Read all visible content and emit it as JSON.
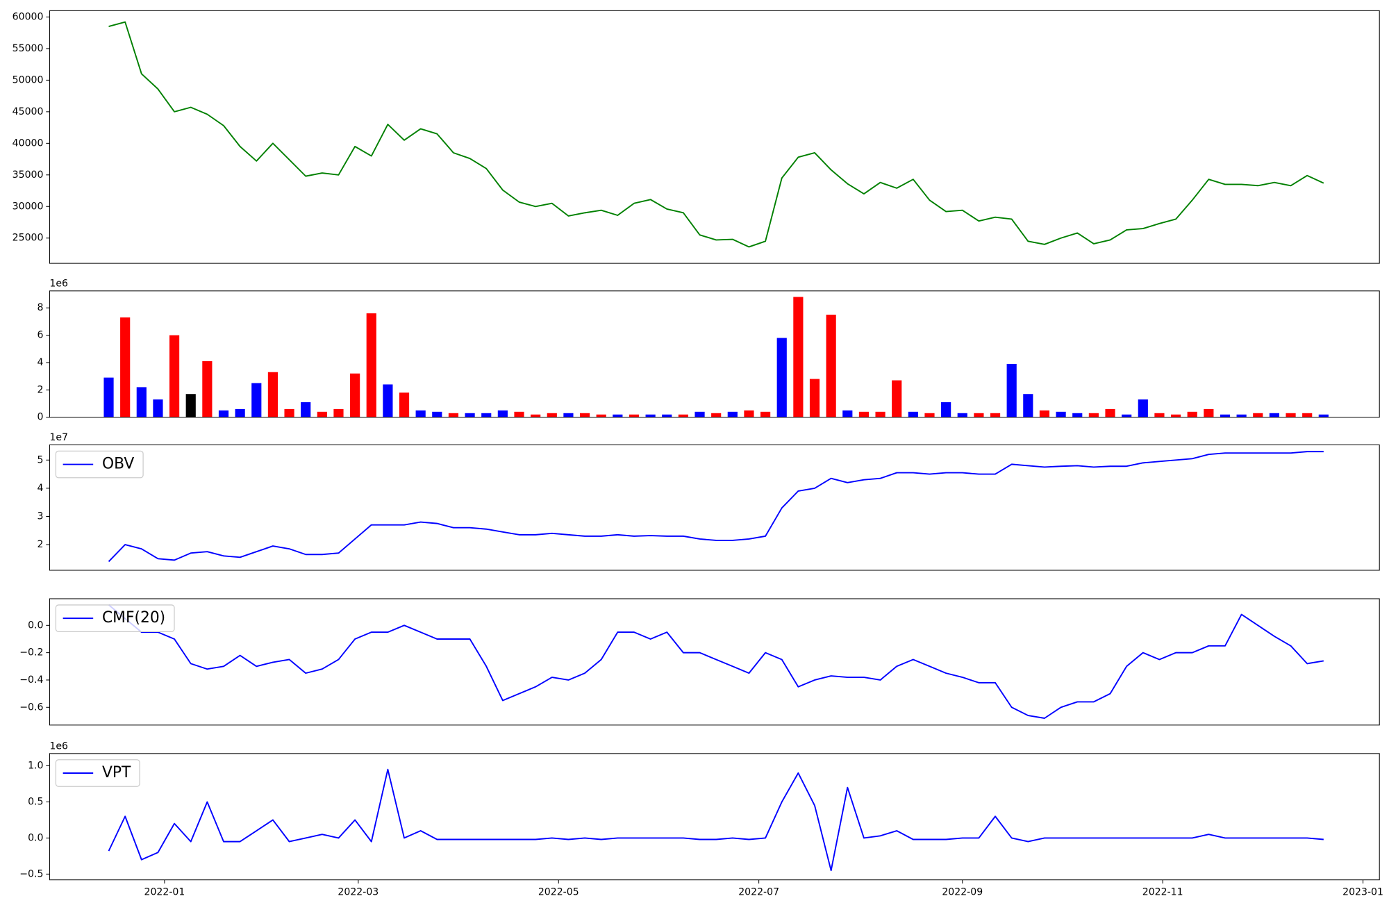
{
  "chart_data": [
    {
      "type": "line",
      "x": [
        "2021-12-15",
        "2021-12-20",
        "2021-12-25",
        "2021-12-30",
        "2022-01-04",
        "2022-01-09",
        "2022-01-14",
        "2022-01-19",
        "2022-01-24",
        "2022-01-29",
        "2022-02-03",
        "2022-02-08",
        "2022-02-13",
        "2022-02-18",
        "2022-02-23",
        "2022-02-28",
        "2022-03-05",
        "2022-03-10",
        "2022-03-15",
        "2022-03-20",
        "2022-03-25",
        "2022-03-30",
        "2022-04-04",
        "2022-04-09",
        "2022-04-14",
        "2022-04-19",
        "2022-04-24",
        "2022-04-29",
        "2022-05-04",
        "2022-05-09",
        "2022-05-14",
        "2022-05-19",
        "2022-05-24",
        "2022-05-29",
        "2022-06-03",
        "2022-06-08",
        "2022-06-13",
        "2022-06-18",
        "2022-06-23",
        "2022-06-28",
        "2022-07-03",
        "2022-07-08",
        "2022-07-13",
        "2022-07-18",
        "2022-07-23",
        "2022-07-28",
        "2022-08-02",
        "2022-08-07",
        "2022-08-12",
        "2022-08-17",
        "2022-08-22",
        "2022-08-27",
        "2022-09-01",
        "2022-09-06",
        "2022-09-11",
        "2022-09-16",
        "2022-09-21",
        "2022-09-26",
        "2022-10-01",
        "2022-10-06",
        "2022-10-11",
        "2022-10-16",
        "2022-10-21",
        "2022-10-26",
        "2022-10-31",
        "2022-11-05",
        "2022-11-10",
        "2022-11-15",
        "2022-11-20",
        "2022-11-25",
        "2022-11-30",
        "2022-12-05",
        "2022-12-10",
        "2022-12-15",
        "2022-12-20"
      ],
      "values": [
        58500,
        59200,
        51000,
        48600,
        45000,
        45700,
        44600,
        42800,
        39500,
        37200,
        40000,
        37400,
        34800,
        35300,
        35000,
        39500,
        38000,
        43000,
        40500,
        42300,
        41500,
        38500,
        37600,
        36000,
        32600,
        30700,
        30000,
        30500,
        28500,
        29000,
        29400,
        28600,
        30500,
        31100,
        29600,
        29000,
        25500,
        24700,
        24800,
        23600,
        24500,
        34500,
        37800,
        38500,
        35800,
        33600,
        32000,
        33800,
        32900,
        34300,
        31000,
        29200,
        29400,
        27700,
        28300,
        28000,
        24500,
        24000,
        25000,
        25800,
        24100,
        24700,
        26300,
        26500,
        27300,
        28000,
        31000,
        34300,
        33500,
        33500,
        33300,
        33800,
        33300,
        34900,
        33700
      ],
      "color": "green",
      "xlim": [
        "2021-11-27",
        "2023-01-06"
      ],
      "ylim": [
        21000,
        61000
      ],
      "yticks": [
        25000,
        30000,
        35000,
        40000,
        45000,
        50000,
        55000,
        60000
      ]
    },
    {
      "type": "bar",
      "x": [
        "2021-12-15",
        "2021-12-20",
        "2021-12-25",
        "2021-12-30",
        "2022-01-04",
        "2022-01-09",
        "2022-01-14",
        "2022-01-19",
        "2022-01-24",
        "2022-01-29",
        "2022-02-03",
        "2022-02-08",
        "2022-02-13",
        "2022-02-18",
        "2022-02-23",
        "2022-02-28",
        "2022-03-05",
        "2022-03-10",
        "2022-03-15",
        "2022-03-20",
        "2022-03-25",
        "2022-03-30",
        "2022-04-04",
        "2022-04-09",
        "2022-04-14",
        "2022-04-19",
        "2022-04-24",
        "2022-04-29",
        "2022-05-04",
        "2022-05-09",
        "2022-05-14",
        "2022-05-19",
        "2022-05-24",
        "2022-05-29",
        "2022-06-03",
        "2022-06-08",
        "2022-06-13",
        "2022-06-18",
        "2022-06-23",
        "2022-06-28",
        "2022-07-03",
        "2022-07-08",
        "2022-07-13",
        "2022-07-18",
        "2022-07-23",
        "2022-07-28",
        "2022-08-02",
        "2022-08-07",
        "2022-08-12",
        "2022-08-17",
        "2022-08-22",
        "2022-08-27",
        "2022-09-01",
        "2022-09-06",
        "2022-09-11",
        "2022-09-16",
        "2022-09-21",
        "2022-09-26",
        "2022-10-01",
        "2022-10-06",
        "2022-10-11",
        "2022-10-16",
        "2022-10-21",
        "2022-10-26",
        "2022-10-31",
        "2022-11-05",
        "2022-11-10",
        "2022-11-15",
        "2022-11-20",
        "2022-11-25",
        "2022-11-30",
        "2022-12-05",
        "2022-12-10",
        "2022-12-15",
        "2022-12-20"
      ],
      "values": [
        2900000,
        7300000,
        2200000,
        1300000,
        6000000,
        1700000,
        4100000,
        500000,
        600000,
        2500000,
        3300000,
        600000,
        1100000,
        400000,
        600000,
        3200000,
        7600000,
        2400000,
        1800000,
        500000,
        400000,
        300000,
        300000,
        300000,
        500000,
        400000,
        200000,
        300000,
        300000,
        300000,
        200000,
        200000,
        200000,
        200000,
        200000,
        200000,
        400000,
        300000,
        400000,
        500000,
        400000,
        5800000,
        8800000,
        2800000,
        7500000,
        500000,
        400000,
        400000,
        2700000,
        400000,
        300000,
        1100000,
        300000,
        300000,
        300000,
        3900000,
        1700000,
        500000,
        400000,
        300000,
        300000,
        600000,
        200000,
        1300000,
        300000,
        200000,
        400000,
        600000,
        200000,
        200000,
        300000,
        300000,
        300000,
        300000,
        200000
      ],
      "colors": [
        "blue",
        "red",
        "blue",
        "blue",
        "red",
        "black",
        "red",
        "blue",
        "blue",
        "blue",
        "red",
        "red",
        "blue",
        "red",
        "red",
        "red",
        "red",
        "blue",
        "red",
        "blue",
        "blue",
        "red",
        "blue",
        "blue",
        "blue",
        "red",
        "red",
        "red",
        "blue",
        "red",
        "red",
        "blue",
        "red",
        "blue",
        "blue",
        "red",
        "blue",
        "red",
        "blue",
        "red",
        "red",
        "blue",
        "red",
        "red",
        "red",
        "blue",
        "red",
        "red",
        "red",
        "blue",
        "red",
        "blue",
        "blue",
        "red",
        "red",
        "blue",
        "blue",
        "red",
        "blue",
        "blue",
        "red",
        "red",
        "blue",
        "blue",
        "red",
        "red",
        "red",
        "red",
        "blue",
        "blue",
        "red",
        "blue",
        "red",
        "red",
        "blue"
      ],
      "xlim": [
        "2021-11-27",
        "2023-01-06"
      ],
      "ylim": [
        0,
        9240000
      ],
      "yticks": [
        0,
        {
          "value": 2000000,
          "label": "2"
        },
        {
          "value": 4000000,
          "label": "4"
        },
        {
          "value": 6000000,
          "label": "6"
        },
        {
          "value": 8000000,
          "label": "8"
        }
      ],
      "offset_text": "1e6"
    },
    {
      "type": "line",
      "x": [
        "2021-12-15",
        "2021-12-20",
        "2021-12-25",
        "2021-12-30",
        "2022-01-04",
        "2022-01-09",
        "2022-01-14",
        "2022-01-19",
        "2022-01-24",
        "2022-01-29",
        "2022-02-03",
        "2022-02-08",
        "2022-02-13",
        "2022-02-18",
        "2022-02-23",
        "2022-02-28",
        "2022-03-05",
        "2022-03-10",
        "2022-03-15",
        "2022-03-20",
        "2022-03-25",
        "2022-03-30",
        "2022-04-04",
        "2022-04-09",
        "2022-04-14",
        "2022-04-19",
        "2022-04-24",
        "2022-04-29",
        "2022-05-04",
        "2022-05-09",
        "2022-05-14",
        "2022-05-19",
        "2022-05-24",
        "2022-05-29",
        "2022-06-03",
        "2022-06-08",
        "2022-06-13",
        "2022-06-18",
        "2022-06-23",
        "2022-06-28",
        "2022-07-03",
        "2022-07-08",
        "2022-07-13",
        "2022-07-18",
        "2022-07-23",
        "2022-07-28",
        "2022-08-02",
        "2022-08-07",
        "2022-08-12",
        "2022-08-17",
        "2022-08-22",
        "2022-08-27",
        "2022-09-01",
        "2022-09-06",
        "2022-09-11",
        "2022-09-16",
        "2022-09-21",
        "2022-09-26",
        "2022-10-01",
        "2022-10-06",
        "2022-10-11",
        "2022-10-16",
        "2022-10-21",
        "2022-10-26",
        "2022-10-31",
        "2022-11-05",
        "2022-11-10",
        "2022-11-15",
        "2022-11-20",
        "2022-11-25",
        "2022-11-30",
        "2022-12-05",
        "2022-12-10",
        "2022-12-15",
        "2022-12-20"
      ],
      "series": [
        {
          "name": "OBV",
          "color": "blue",
          "values": [
            14000000,
            20000000,
            18500000,
            15000000,
            14500000,
            17000000,
            17500000,
            16000000,
            15500000,
            17500000,
            19500000,
            18500000,
            16500000,
            16500000,
            17000000,
            22000000,
            27000000,
            27000000,
            27000000,
            28000000,
            27500000,
            26000000,
            26000000,
            25500000,
            24500000,
            23500000,
            23500000,
            24000000,
            23500000,
            23000000,
            23000000,
            23500000,
            23000000,
            23200000,
            23000000,
            23000000,
            22000000,
            21500000,
            21500000,
            22000000,
            23000000,
            33000000,
            39000000,
            40000000,
            43500000,
            42000000,
            43000000,
            43500000,
            45500000,
            45500000,
            45000000,
            45500000,
            45500000,
            45000000,
            45000000,
            48500000,
            48000000,
            47500000,
            47800000,
            48000000,
            47500000,
            47800000,
            47800000,
            49000000,
            49500000,
            50000000,
            50500000,
            52000000,
            52500000,
            52500000,
            52500000,
            52500000,
            52500000,
            53000000,
            53000000
          ]
        }
      ],
      "xlim": [
        "2021-11-27",
        "2023-01-06"
      ],
      "ylim": [
        10900000,
        55400000
      ],
      "yticks": [
        {
          "value": 20000000,
          "label": "2"
        },
        {
          "value": 30000000,
          "label": "3"
        },
        {
          "value": 40000000,
          "label": "4"
        },
        {
          "value": 50000000,
          "label": "5"
        }
      ],
      "offset_text": "1e7",
      "legend": "upper left"
    },
    {
      "type": "line",
      "x": [
        "2021-12-15",
        "2021-12-20",
        "2021-12-25",
        "2021-12-30",
        "2022-01-04",
        "2022-01-09",
        "2022-01-14",
        "2022-01-19",
        "2022-01-24",
        "2022-01-29",
        "2022-02-03",
        "2022-02-08",
        "2022-02-13",
        "2022-02-18",
        "2022-02-23",
        "2022-02-28",
        "2022-03-05",
        "2022-03-10",
        "2022-03-15",
        "2022-03-20",
        "2022-03-25",
        "2022-03-30",
        "2022-04-04",
        "2022-04-09",
        "2022-04-14",
        "2022-04-19",
        "2022-04-24",
        "2022-04-29",
        "2022-05-04",
        "2022-05-09",
        "2022-05-14",
        "2022-05-19",
        "2022-05-24",
        "2022-05-29",
        "2022-06-03",
        "2022-06-08",
        "2022-06-13",
        "2022-06-18",
        "2022-06-23",
        "2022-06-28",
        "2022-07-03",
        "2022-07-08",
        "2022-07-13",
        "2022-07-18",
        "2022-07-23",
        "2022-07-28",
        "2022-08-02",
        "2022-08-07",
        "2022-08-12",
        "2022-08-17",
        "2022-08-22",
        "2022-08-27",
        "2022-09-01",
        "2022-09-06",
        "2022-09-11",
        "2022-09-16",
        "2022-09-21",
        "2022-09-26",
        "2022-10-01",
        "2022-10-06",
        "2022-10-11",
        "2022-10-16",
        "2022-10-21",
        "2022-10-26",
        "2022-10-31",
        "2022-11-05",
        "2022-11-10",
        "2022-11-15",
        "2022-11-20",
        "2022-11-25",
        "2022-11-30",
        "2022-12-05",
        "2022-12-10",
        "2022-12-15",
        "2022-12-20"
      ],
      "series": [
        {
          "name": "CMF(20)",
          "color": "blue",
          "values": [
            0.15,
            0.05,
            -0.05,
            -0.05,
            -0.1,
            -0.28,
            -0.32,
            -0.3,
            -0.22,
            -0.3,
            -0.27,
            -0.25,
            -0.35,
            -0.32,
            -0.25,
            -0.1,
            -0.05,
            -0.05,
            0.0,
            -0.05,
            -0.1,
            -0.1,
            -0.1,
            -0.3,
            -0.55,
            -0.5,
            -0.45,
            -0.38,
            -0.4,
            -0.35,
            -0.25,
            -0.05,
            -0.05,
            -0.1,
            -0.05,
            -0.2,
            -0.2,
            -0.25,
            -0.3,
            -0.35,
            -0.2,
            -0.25,
            -0.45,
            -0.4,
            -0.37,
            -0.38,
            -0.38,
            -0.4,
            -0.3,
            -0.25,
            -0.3,
            -0.35,
            -0.38,
            -0.42,
            -0.42,
            -0.6,
            -0.66,
            -0.68,
            -0.6,
            -0.56,
            -0.56,
            -0.5,
            -0.3,
            -0.2,
            -0.25,
            -0.2,
            -0.2,
            -0.15,
            -0.15,
            0.08,
            0.0,
            -0.08,
            -0.15,
            -0.28,
            -0.26
          ]
        }
      ],
      "xlim": [
        "2021-11-27",
        "2023-01-06"
      ],
      "ylim": [
        -0.73,
        0.195
      ],
      "yticks": [
        {
          "value": -0.6,
          "label": "−0.6"
        },
        {
          "value": -0.4,
          "label": "−0.4"
        },
        {
          "value": -0.2,
          "label": "−0.2"
        },
        {
          "value": 0,
          "label": "0.0"
        }
      ],
      "legend": "upper left"
    },
    {
      "type": "line",
      "x": [
        "2021-12-15",
        "2021-12-20",
        "2021-12-25",
        "2021-12-30",
        "2022-01-04",
        "2022-01-09",
        "2022-01-14",
        "2022-01-19",
        "2022-01-24",
        "2022-01-29",
        "2022-02-03",
        "2022-02-08",
        "2022-02-13",
        "2022-02-18",
        "2022-02-23",
        "2022-02-28",
        "2022-03-05",
        "2022-03-10",
        "2022-03-15",
        "2022-03-20",
        "2022-03-25",
        "2022-03-30",
        "2022-04-04",
        "2022-04-09",
        "2022-04-14",
        "2022-04-19",
        "2022-04-24",
        "2022-04-29",
        "2022-05-04",
        "2022-05-09",
        "2022-05-14",
        "2022-05-19",
        "2022-05-24",
        "2022-05-29",
        "2022-06-03",
        "2022-06-08",
        "2022-06-13",
        "2022-06-18",
        "2022-06-23",
        "2022-06-28",
        "2022-07-03",
        "2022-07-08",
        "2022-07-13",
        "2022-07-18",
        "2022-07-23",
        "2022-07-28",
        "2022-08-02",
        "2022-08-07",
        "2022-08-12",
        "2022-08-17",
        "2022-08-22",
        "2022-08-27",
        "2022-09-01",
        "2022-09-06",
        "2022-09-11",
        "2022-09-16",
        "2022-09-21",
        "2022-09-26",
        "2022-10-01",
        "2022-10-06",
        "2022-10-11",
        "2022-10-16",
        "2022-10-21",
        "2022-10-26",
        "2022-10-31",
        "2022-11-05",
        "2022-11-10",
        "2022-11-15",
        "2022-11-20",
        "2022-11-25",
        "2022-11-30",
        "2022-12-05",
        "2022-12-10",
        "2022-12-15",
        "2022-12-20"
      ],
      "series": [
        {
          "name": "VPT",
          "color": "blue",
          "values": [
            -180000,
            300000,
            -300000,
            -200000,
            200000,
            -50000,
            500000,
            -50000,
            -50000,
            100000,
            250000,
            -50000,
            0,
            50000,
            0,
            250000,
            -50000,
            950000,
            0,
            100000,
            -20000,
            -20000,
            -20000,
            -20000,
            -20000,
            -20000,
            -20000,
            0,
            -20000,
            0,
            -20000,
            0,
            0,
            0,
            0,
            0,
            -20000,
            -20000,
            0,
            -20000,
            0,
            500000,
            900000,
            450000,
            -450000,
            700000,
            0,
            30000,
            100000,
            -20000,
            -20000,
            -20000,
            0,
            0,
            300000,
            0,
            -50000,
            0,
            0,
            0,
            0,
            0,
            0,
            0,
            0,
            0,
            0,
            50000,
            0,
            0,
            0,
            0,
            0,
            0,
            -20000
          ]
        }
      ],
      "xlim": [
        "2021-11-27",
        "2023-01-06"
      ],
      "ylim": [
        -580000,
        1170000
      ],
      "yticks": [
        {
          "value": -500000,
          "label": "−0.5"
        },
        {
          "value": 0,
          "label": "0.0"
        },
        {
          "value": 500000,
          "label": "0.5"
        },
        {
          "value": 1000000,
          "label": "1.0"
        }
      ],
      "offset_text": "1e6",
      "legend": "upper left",
      "xticks": [
        {
          "value": "2022-01-01",
          "label": "2022-01"
        },
        {
          "value": "2022-03-01",
          "label": "2022-03"
        },
        {
          "value": "2022-05-01",
          "label": "2022-05"
        },
        {
          "value": "2022-07-01",
          "label": "2022-07"
        },
        {
          "value": "2022-09-01",
          "label": "2022-09"
        },
        {
          "value": "2022-11-01",
          "label": "2022-11"
        },
        {
          "value": "2023-01-01",
          "label": "2023-01"
        }
      ]
    }
  ]
}
